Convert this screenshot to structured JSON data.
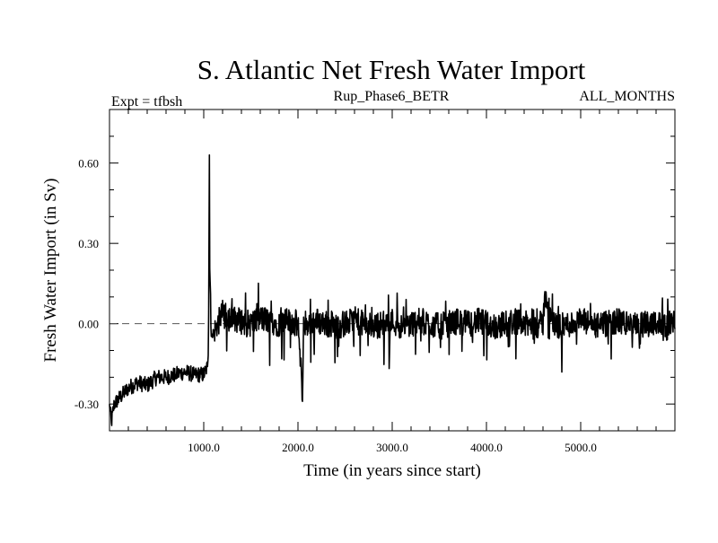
{
  "chart_data": {
    "type": "line",
    "title": "S. Atlantic Net Fresh Water Import",
    "subtitle_left": "Expt = tfbsh",
    "subtitle_center": "Rup_Phase6_BETR",
    "subtitle_right": "ALL_MONTHS",
    "xlabel": "Time (in years since start)",
    "ylabel": "Fresh Water Import (in Sv)",
    "xlim": [
      0,
      6000
    ],
    "ylim": [
      -0.4,
      0.8
    ],
    "x_ticks": [
      {
        "value": 1000,
        "label": "1000.0"
      },
      {
        "value": 2000,
        "label": "2000.0"
      },
      {
        "value": 3000,
        "label": "3000.0"
      },
      {
        "value": 4000,
        "label": "4000.0"
      },
      {
        "value": 5000,
        "label": "5000.0"
      }
    ],
    "y_ticks": [
      {
        "value": -0.3,
        "label": "-0.30"
      },
      {
        "value": 0.0,
        "label": "0.00"
      },
      {
        "value": 0.3,
        "label": "0.30"
      },
      {
        "value": 0.6,
        "label": "0.60"
      }
    ],
    "x_minor_step": 200,
    "y_minor_step": 0.1,
    "reference_line": {
      "y": 0.0,
      "style": "dashed"
    },
    "grid": false,
    "series": [
      {
        "x": [
          0,
          20,
          50,
          100,
          150,
          200,
          300,
          400,
          500,
          600,
          700,
          800,
          900,
          1000,
          1040,
          1050,
          1060,
          1065,
          1070,
          1075,
          1080,
          1090,
          1100,
          1120,
          1150,
          1200,
          1250,
          1300,
          1400,
          1500,
          1600,
          1700,
          1800,
          1900,
          2000,
          2050,
          2060,
          2100,
          2200,
          2300,
          2400,
          2500,
          2600,
          2700,
          2800,
          2900,
          3000,
          3100,
          3200,
          3300,
          3400,
          3500,
          3600,
          3700,
          3800,
          3900,
          4000,
          4100,
          4200,
          4300,
          4400,
          4500,
          4600,
          4620,
          4700,
          4800,
          4900,
          5000,
          5100,
          5200,
          5300,
          5400,
          5500,
          5600,
          5700,
          5800,
          5900,
          5950,
          6000
        ],
        "y": [
          -0.3,
          -0.37,
          -0.3,
          -0.28,
          -0.26,
          -0.24,
          -0.22,
          -0.23,
          -0.2,
          -0.2,
          -0.19,
          -0.18,
          -0.19,
          -0.19,
          -0.16,
          -0.1,
          0.63,
          0.1,
          0.2,
          0.0,
          -0.05,
          -0.04,
          -0.05,
          -0.02,
          0.0,
          0.04,
          0.02,
          0.02,
          0.01,
          0.0,
          0.02,
          0.01,
          0.0,
          0.01,
          0.0,
          -0.27,
          0.01,
          0.0,
          0.01,
          0.0,
          -0.01,
          0.0,
          0.01,
          0.0,
          -0.01,
          0.0,
          0.01,
          -0.01,
          0.0,
          0.01,
          0.0,
          -0.01,
          0.0,
          0.01,
          0.0,
          0.01,
          0.0,
          -0.01,
          0.0,
          0.01,
          0.0,
          -0.01,
          0.0,
          0.12,
          0.0,
          -0.01,
          0.0,
          0.01,
          0.0,
          -0.01,
          0.0,
          0.01,
          0.0,
          -0.01,
          0.0,
          0.01,
          -0.02,
          0.0,
          0.02
        ],
        "noise_amplitude": 0.05
      }
    ]
  }
}
